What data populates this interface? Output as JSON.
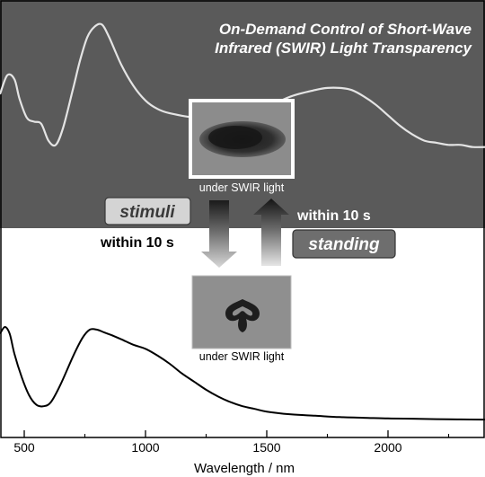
{
  "title": {
    "line1": "On-Demand Control of Short-Wave",
    "line2": "Infrared (SWIR) Light Transparency"
  },
  "photos": {
    "top_caption": "under SWIR light",
    "bottom_caption": "under SWIR light"
  },
  "labels": {
    "stimuli": "stimuli",
    "standing": "standing",
    "time_down": "within 10 s",
    "time_up": "within 10 s"
  },
  "axis": {
    "xlabel": "Wavelength / nm",
    "ticks": [
      {
        "value": 500,
        "label": "500"
      },
      {
        "value": 1000,
        "label": "1000"
      },
      {
        "value": 1500,
        "label": "1500"
      },
      {
        "value": 2000,
        "label": "2000"
      }
    ],
    "minor_ticks": [
      750,
      1250,
      1750,
      2250
    ],
    "xlim": [
      400,
      2400
    ]
  },
  "colors": {
    "top_panel": "#5a5a5a",
    "top_curve": "#e4e4e4",
    "bottom_curve": "#000000",
    "badge_light": "#d4d4d4",
    "badge_dark": "#6e6e6e"
  },
  "spectra": {
    "top": [
      [
        400,
        0.66
      ],
      [
        430,
        0.75
      ],
      [
        460,
        0.73
      ],
      [
        480,
        0.64
      ],
      [
        510,
        0.55
      ],
      [
        540,
        0.53
      ],
      [
        570,
        0.52
      ],
      [
        600,
        0.44
      ],
      [
        630,
        0.42
      ],
      [
        660,
        0.5
      ],
      [
        700,
        0.68
      ],
      [
        730,
        0.82
      ],
      [
        760,
        0.93
      ],
      [
        790,
        0.98
      ],
      [
        820,
        0.99
      ],
      [
        850,
        0.93
      ],
      [
        900,
        0.8
      ],
      [
        950,
        0.7
      ],
      [
        1000,
        0.63
      ],
      [
        1050,
        0.59
      ],
      [
        1100,
        0.57
      ],
      [
        1200,
        0.55
      ],
      [
        1300,
        0.55
      ],
      [
        1400,
        0.57
      ],
      [
        1500,
        0.6
      ],
      [
        1600,
        0.65
      ],
      [
        1700,
        0.68
      ],
      [
        1750,
        0.69
      ],
      [
        1800,
        0.69
      ],
      [
        1850,
        0.68
      ],
      [
        1900,
        0.65
      ],
      [
        1950,
        0.61
      ],
      [
        2000,
        0.56
      ],
      [
        2050,
        0.51
      ],
      [
        2100,
        0.47
      ],
      [
        2150,
        0.44
      ],
      [
        2200,
        0.43
      ],
      [
        2250,
        0.42
      ],
      [
        2300,
        0.42
      ],
      [
        2350,
        0.41
      ],
      [
        2400,
        0.41
      ]
    ],
    "bottom": [
      [
        400,
        0.7
      ],
      [
        420,
        0.75
      ],
      [
        440,
        0.7
      ],
      [
        460,
        0.55
      ],
      [
        490,
        0.38
      ],
      [
        520,
        0.25
      ],
      [
        550,
        0.18
      ],
      [
        580,
        0.17
      ],
      [
        610,
        0.2
      ],
      [
        650,
        0.33
      ],
      [
        700,
        0.53
      ],
      [
        740,
        0.67
      ],
      [
        770,
        0.73
      ],
      [
        800,
        0.73
      ],
      [
        830,
        0.71
      ],
      [
        860,
        0.69
      ],
      [
        900,
        0.66
      ],
      [
        950,
        0.62
      ],
      [
        1000,
        0.59
      ],
      [
        1050,
        0.54
      ],
      [
        1100,
        0.48
      ],
      [
        1150,
        0.41
      ],
      [
        1200,
        0.35
      ],
      [
        1250,
        0.29
      ],
      [
        1300,
        0.24
      ],
      [
        1350,
        0.2
      ],
      [
        1400,
        0.17
      ],
      [
        1450,
        0.15
      ],
      [
        1500,
        0.13
      ],
      [
        1600,
        0.11
      ],
      [
        1700,
        0.1
      ],
      [
        1800,
        0.09
      ],
      [
        1900,
        0.085
      ],
      [
        2000,
        0.08
      ],
      [
        2100,
        0.078
      ],
      [
        2200,
        0.075
      ],
      [
        2300,
        0.073
      ],
      [
        2400,
        0.072
      ]
    ]
  }
}
